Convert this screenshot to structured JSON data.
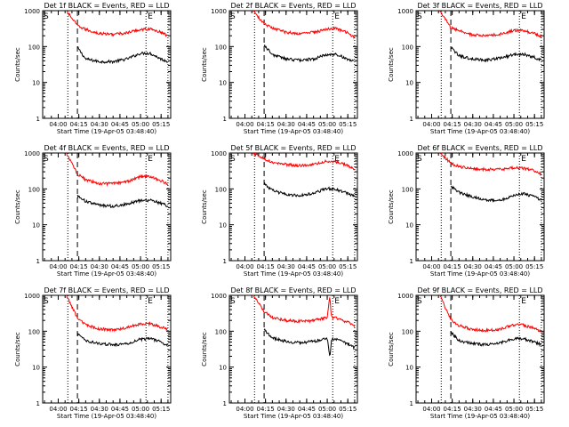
{
  "figure": {
    "xlabel": "Start Time (19-Apr-05 03:48:40)",
    "ylabel": "Counts/sec",
    "x_tick_labels": [
      "04:00",
      "04:15",
      "04:30",
      "04:45",
      "05:00",
      "05:15"
    ],
    "y_tick_labels": [
      "1",
      "10",
      "100",
      "1000"
    ],
    "marker_start": "S",
    "marker_end": "E"
  },
  "colors": {
    "events": "#000000",
    "lld": "#ff0000",
    "background": "#ffffff"
  },
  "chart_data": [
    {
      "type": "line",
      "title": "Det 1f BLACK = Events, RED = LLD",
      "xlim": [
        "03:48:40",
        "05:22:00"
      ],
      "ylim": [
        1,
        1000
      ],
      "yscale": "log",
      "x_ticks": [
        "04:00",
        "04:15",
        "04:30",
        "04:45",
        "05:00",
        "05:15"
      ],
      "dotted_lines": [
        "04:07",
        "05:04",
        "05:20"
      ],
      "dashed_line": "04:14",
      "x": [
        "04:06",
        "04:14",
        "04:20",
        "04:30",
        "04:40",
        "04:50",
        "05:00",
        "05:07",
        "05:15",
        "05:20"
      ],
      "series": [
        {
          "name": "BLACK = Events",
          "color": "#000000",
          "x_start": "04:14",
          "values": [
            null,
            95,
            45,
            38,
            38,
            45,
            65,
            65,
            45,
            38
          ]
        },
        {
          "name": "RED = LLD",
          "color": "#ff0000",
          "x_start": "04:06",
          "values": [
            1000,
            380,
            300,
            230,
            220,
            240,
            300,
            310,
            250,
            200
          ]
        }
      ]
    },
    {
      "type": "line",
      "title": "Det 2f BLACK = Events, RED = LLD",
      "xlim": [
        "03:48:40",
        "05:22:00"
      ],
      "ylim": [
        1,
        1000
      ],
      "yscale": "log",
      "x_ticks": [
        "04:00",
        "04:15",
        "04:30",
        "04:45",
        "05:00",
        "05:15"
      ],
      "dotted_lines": [
        "04:07",
        "05:04",
        "05:20"
      ],
      "dashed_line": "04:14",
      "x": [
        "04:06",
        "04:14",
        "04:20",
        "04:30",
        "04:40",
        "04:50",
        "05:00",
        "05:07",
        "05:15",
        "05:20"
      ],
      "series": [
        {
          "name": "BLACK = Events",
          "color": "#000000",
          "x_start": "04:14",
          "values": [
            null,
            110,
            60,
            45,
            42,
            45,
            60,
            60,
            45,
            38
          ]
        },
        {
          "name": "RED = LLD",
          "color": "#ff0000",
          "x_start": "04:06",
          "values": [
            1000,
            420,
            330,
            250,
            230,
            250,
            310,
            320,
            240,
            180
          ]
        }
      ]
    },
    {
      "type": "line",
      "title": "Det 3f BLACK = Events, RED = LLD",
      "xlim": [
        "03:48:40",
        "05:22:00"
      ],
      "ylim": [
        1,
        1000
      ],
      "yscale": "log",
      "x_ticks": [
        "04:00",
        "04:15",
        "04:30",
        "04:45",
        "05:00",
        "05:15"
      ],
      "dotted_lines": [
        "04:07",
        "05:04",
        "05:20"
      ],
      "dashed_line": "04:14",
      "x": [
        "04:06",
        "04:14",
        "04:20",
        "04:30",
        "04:40",
        "04:50",
        "05:00",
        "05:07",
        "05:15",
        "05:20"
      ],
      "series": [
        {
          "name": "BLACK = Events",
          "color": "#000000",
          "x_start": "04:14",
          "values": [
            null,
            95,
            55,
            45,
            42,
            48,
            60,
            62,
            50,
            42
          ]
        },
        {
          "name": "RED = LLD",
          "color": "#ff0000",
          "x_start": "04:06",
          "values": [
            1000,
            330,
            280,
            210,
            200,
            220,
            280,
            280,
            230,
            190
          ]
        }
      ]
    },
    {
      "type": "line",
      "title": "Det 4f BLACK = Events, RED = LLD",
      "xlim": [
        "03:48:40",
        "05:22:00"
      ],
      "ylim": [
        1,
        1000
      ],
      "yscale": "log",
      "x_ticks": [
        "04:00",
        "04:15",
        "04:30",
        "04:45",
        "05:00",
        "05:15"
      ],
      "dotted_lines": [
        "04:07",
        "05:04",
        "05:20"
      ],
      "dashed_line": "04:14",
      "x": [
        "04:06",
        "04:14",
        "04:20",
        "04:30",
        "04:40",
        "04:50",
        "05:00",
        "05:07",
        "05:15",
        "05:20"
      ],
      "series": [
        {
          "name": "BLACK = Events",
          "color": "#000000",
          "x_start": "04:14",
          "values": [
            null,
            65,
            45,
            35,
            33,
            38,
            48,
            48,
            40,
            33
          ]
        },
        {
          "name": "RED = LLD",
          "color": "#ff0000",
          "x_start": "04:06",
          "values": [
            1000,
            260,
            180,
            140,
            140,
            160,
            220,
            220,
            170,
            130
          ]
        }
      ]
    },
    {
      "type": "line",
      "title": "Det 5f BLACK = Events, RED = LLD",
      "xlim": [
        "03:48:40",
        "05:22:00"
      ],
      "ylim": [
        1,
        1000
      ],
      "yscale": "log",
      "x_ticks": [
        "04:00",
        "04:15",
        "04:30",
        "04:45",
        "05:00",
        "05:15"
      ],
      "dotted_lines": [
        "04:07",
        "05:04",
        "05:20"
      ],
      "dashed_line": "04:14",
      "x": [
        "04:06",
        "04:14",
        "04:20",
        "04:30",
        "04:40",
        "04:50",
        "05:00",
        "05:07",
        "05:15",
        "05:20"
      ],
      "series": [
        {
          "name": "BLACK = Events",
          "color": "#000000",
          "x_start": "04:14",
          "values": [
            null,
            140,
            90,
            70,
            65,
            75,
            105,
            95,
            75,
            62
          ]
        },
        {
          "name": "RED = LLD",
          "color": "#ff0000",
          "x_start": "04:06",
          "values": [
            1000,
            700,
            560,
            480,
            440,
            480,
            590,
            560,
            450,
            340
          ]
        }
      ]
    },
    {
      "type": "line",
      "title": "Det 6f BLACK = Events, RED = LLD",
      "xlim": [
        "03:48:40",
        "05:22:00"
      ],
      "ylim": [
        1,
        1000
      ],
      "yscale": "log",
      "x_ticks": [
        "04:00",
        "04:15",
        "04:30",
        "04:45",
        "05:00",
        "05:15"
      ],
      "dotted_lines": [
        "04:07",
        "05:04",
        "05:20"
      ],
      "dashed_line": "04:14",
      "x": [
        "04:06",
        "04:14",
        "04:20",
        "04:30",
        "04:40",
        "04:50",
        "05:00",
        "05:07",
        "05:15",
        "05:20"
      ],
      "series": [
        {
          "name": "BLACK = Events",
          "color": "#000000",
          "x_start": "04:14",
          "values": [
            null,
            120,
            80,
            60,
            50,
            48,
            65,
            75,
            60,
            50
          ]
        },
        {
          "name": "RED = LLD",
          "color": "#ff0000",
          "x_start": "04:06",
          "values": [
            1000,
            520,
            420,
            370,
            350,
            350,
            390,
            380,
            320,
            260
          ]
        }
      ]
    },
    {
      "type": "line",
      "title": "Det 7f BLACK = Events, RED = LLD",
      "xlim": [
        "03:48:40",
        "05:22:00"
      ],
      "ylim": [
        1,
        1000
      ],
      "yscale": "log",
      "x_ticks": [
        "04:00",
        "04:15",
        "04:30",
        "04:45",
        "05:00",
        "05:15"
      ],
      "dotted_lines": [
        "04:07",
        "05:04",
        "05:20"
      ],
      "dashed_line": "04:14",
      "x": [
        "04:06",
        "04:14",
        "04:20",
        "04:30",
        "04:40",
        "04:50",
        "05:00",
        "05:07",
        "05:15",
        "05:20"
      ],
      "series": [
        {
          "name": "BLACK = Events",
          "color": "#000000",
          "x_start": "04:14",
          "values": [
            null,
            85,
            55,
            45,
            42,
            45,
            60,
            62,
            50,
            40
          ]
        },
        {
          "name": "RED = LLD",
          "color": "#ff0000",
          "x_start": "04:06",
          "values": [
            1000,
            230,
            150,
            115,
            110,
            125,
            160,
            160,
            130,
            110
          ]
        }
      ]
    },
    {
      "type": "line",
      "title": "Det 8f BLACK = Events, RED = LLD",
      "xlim": [
        "03:48:40",
        "05:22:00"
      ],
      "ylim": [
        1,
        1000
      ],
      "yscale": "log",
      "x_ticks": [
        "04:00",
        "04:15",
        "04:30",
        "04:45",
        "05:00",
        "05:15"
      ],
      "dotted_lines": [
        "04:07",
        "05:04",
        "05:20"
      ],
      "dashed_line": "04:14",
      "x": [
        "04:06",
        "04:14",
        "04:20",
        "04:30",
        "04:40",
        "04:50",
        "05:00",
        "05:02",
        "05:03",
        "05:04",
        "05:07",
        "05:15",
        "05:20"
      ],
      "series": [
        {
          "name": "BLACK = Events",
          "color": "#000000",
          "x_start": "04:14",
          "values": [
            null,
            110,
            65,
            52,
            48,
            52,
            62,
            18,
            60,
            60,
            58,
            45,
            35
          ]
        },
        {
          "name": "RED = LLD",
          "color": "#ff0000",
          "x_start": "04:06",
          "values": [
            1000,
            360,
            240,
            200,
            190,
            200,
            240,
            1000,
            250,
            240,
            230,
            180,
            140
          ]
        }
      ]
    },
    {
      "type": "line",
      "title": "Det 9f BLACK = Events, RED = LLD",
      "xlim": [
        "03:48:40",
        "05:22:00"
      ],
      "ylim": [
        1,
        1000
      ],
      "yscale": "log",
      "x_ticks": [
        "04:00",
        "04:15",
        "04:30",
        "04:45",
        "05:00",
        "05:15"
      ],
      "dotted_lines": [
        "04:07",
        "05:04",
        "05:20"
      ],
      "dashed_line": "04:14",
      "x": [
        "04:06",
        "04:14",
        "04:20",
        "04:30",
        "04:40",
        "04:50",
        "05:00",
        "05:07",
        "05:15",
        "05:20"
      ],
      "series": [
        {
          "name": "BLACK = Events",
          "color": "#000000",
          "x_start": "04:14",
          "values": [
            null,
            95,
            55,
            45,
            42,
            48,
            62,
            62,
            50,
            42
          ]
        },
        {
          "name": "RED = LLD",
          "color": "#ff0000",
          "x_start": "04:06",
          "values": [
            1000,
            210,
            145,
            110,
            105,
            115,
            150,
            150,
            120,
            100
          ]
        }
      ]
    }
  ]
}
